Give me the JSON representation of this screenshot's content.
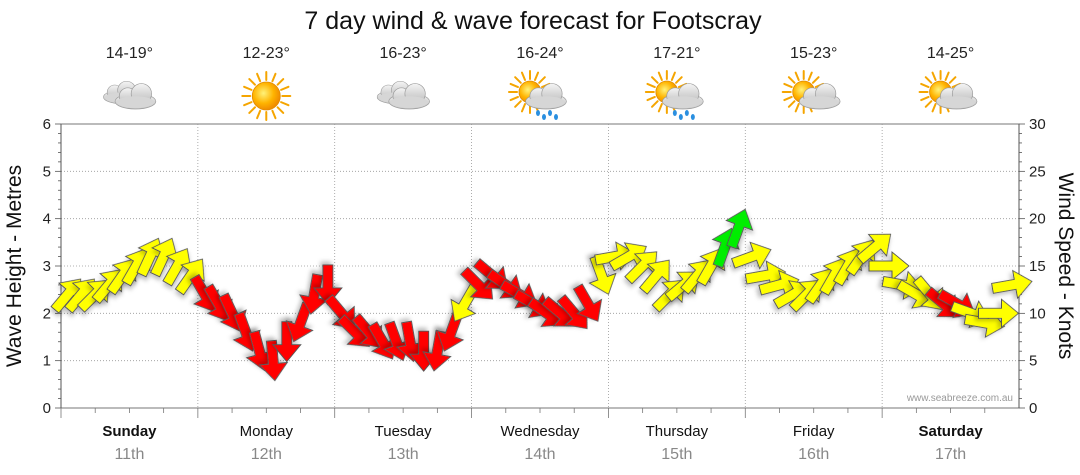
{
  "chart_data": {
    "type": "line",
    "title": "7 day wind & wave forecast for Footscray",
    "watermark": "www.seabreeze.com.au",
    "y_left": {
      "label": "Wave Height - Metres",
      "range": [
        0,
        6
      ],
      "ticks": [
        "0",
        "1",
        "2",
        "3",
        "4",
        "5",
        "6"
      ]
    },
    "y_right": {
      "label": "Wind Speed - Knots",
      "range": [
        0,
        30
      ],
      "ticks": [
        "0",
        "5",
        "10",
        "15",
        "20",
        "25",
        "30"
      ]
    },
    "grid": true,
    "colors": {
      "light": "#ffff00",
      "moderate": "#ff0000",
      "fresh": "#00ee00",
      "outline": "#555555"
    },
    "days": [
      {
        "name": "Sunday",
        "date": "11th",
        "temp": "14-19°",
        "icon": "cloudy-icon",
        "weekend": true
      },
      {
        "name": "Monday",
        "date": "12th",
        "temp": "12-23°",
        "icon": "sunny-icon",
        "weekend": false
      },
      {
        "name": "Tuesday",
        "date": "13th",
        "temp": "16-23°",
        "icon": "cloudy-icon",
        "weekend": false
      },
      {
        "name": "Wednesday",
        "date": "14th",
        "temp": "16-24°",
        "icon": "showers-icon",
        "weekend": false
      },
      {
        "name": "Thursday",
        "date": "15th",
        "temp": "17-21°",
        "icon": "showers-icon",
        "weekend": false
      },
      {
        "name": "Friday",
        "date": "16th",
        "temp": "15-23°",
        "icon": "partly-cloudy-icon",
        "weekend": false
      },
      {
        "name": "Saturday",
        "date": "17th",
        "temp": "14-25°",
        "icon": "partly-cloudy-icon",
        "weekend": true
      }
    ],
    "wind_series": {
      "name": "Wind Speed",
      "x_day": [
        0.05,
        0.15,
        0.25,
        0.35,
        0.45,
        0.55,
        0.65,
        0.75,
        0.85,
        0.95,
        1.05,
        1.15,
        1.25,
        1.35,
        1.45,
        1.55,
        1.65,
        1.75,
        1.85,
        1.95,
        2.05,
        2.15,
        2.25,
        2.35,
        2.45,
        2.55,
        2.65,
        2.75,
        2.85,
        2.95,
        3.05,
        3.15,
        3.25,
        3.35,
        3.45,
        3.55,
        3.65,
        3.75,
        3.85,
        3.95,
        4.05,
        4.15,
        4.25,
        4.35,
        4.45,
        4.55,
        4.65,
        4.75,
        4.85,
        4.95,
        5.05,
        5.15,
        5.25,
        5.35,
        5.45,
        5.55,
        5.65,
        5.75,
        5.85,
        5.95,
        6.05,
        6.15,
        6.25,
        6.35,
        6.45,
        6.55,
        6.65,
        6.75,
        6.85,
        6.95
      ],
      "knots": [
        12,
        12,
        12,
        13,
        14,
        15,
        16,
        16,
        15,
        14,
        12,
        11,
        10,
        8,
        6,
        5,
        7,
        9,
        12,
        13,
        10,
        8,
        8,
        7,
        7,
        7,
        6,
        6,
        8,
        11,
        13,
        14,
        13,
        12,
        11,
        10,
        10,
        10,
        11,
        14,
        16,
        16,
        15,
        14,
        12,
        13,
        14,
        15,
        17,
        19,
        16,
        14,
        13,
        12,
        12,
        13,
        14,
        15,
        16,
        17,
        15,
        13,
        12,
        12,
        11,
        11,
        10,
        9,
        10,
        13
      ],
      "direction_deg": [
        40,
        40,
        45,
        40,
        35,
        30,
        25,
        25,
        30,
        35,
        150,
        150,
        155,
        160,
        165,
        175,
        180,
        200,
        190,
        180,
        140,
        135,
        140,
        150,
        160,
        170,
        180,
        190,
        200,
        210,
        135,
        130,
        125,
        120,
        120,
        125,
        130,
        140,
        150,
        160,
        80,
        60,
        45,
        40,
        45,
        50,
        40,
        30,
        20,
        20,
        70,
        80,
        75,
        60,
        45,
        35,
        30,
        30,
        35,
        50,
        90,
        100,
        120,
        140,
        130,
        120,
        110,
        100,
        90,
        80
      ],
      "category": [
        "light",
        "light",
        "light",
        "light",
        "light",
        "light",
        "light",
        "light",
        "light",
        "light",
        "moderate",
        "moderate",
        "moderate",
        "moderate",
        "moderate",
        "moderate",
        "moderate",
        "moderate",
        "moderate",
        "moderate",
        "moderate",
        "moderate",
        "moderate",
        "moderate",
        "moderate",
        "moderate",
        "moderate",
        "moderate",
        "moderate",
        "light",
        "moderate",
        "moderate",
        "moderate",
        "moderate",
        "moderate",
        "moderate",
        "moderate",
        "moderate",
        "moderate",
        "light",
        "light",
        "light",
        "light",
        "light",
        "light",
        "light",
        "light",
        "light",
        "fresh",
        "fresh",
        "light",
        "light",
        "light",
        "light",
        "light",
        "light",
        "light",
        "light",
        "light",
        "light",
        "light",
        "light",
        "light",
        "light",
        "moderate",
        "moderate",
        "light",
        "light",
        "light",
        "light"
      ]
    }
  }
}
